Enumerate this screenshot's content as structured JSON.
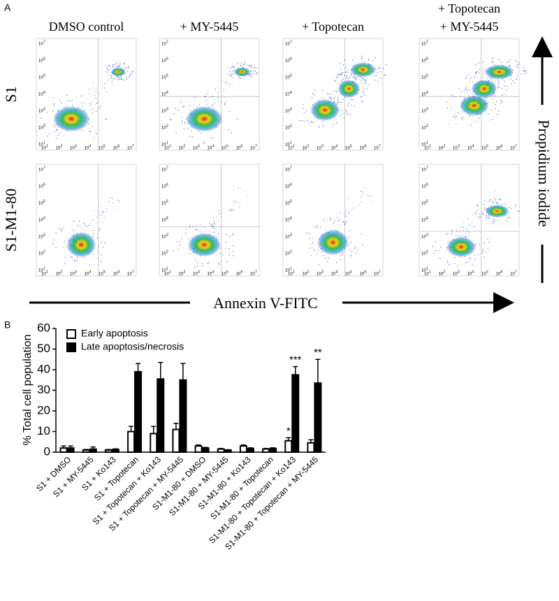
{
  "panel_a": {
    "label": "A",
    "columns": [
      [
        "DMSO control"
      ],
      [
        "+ MY-5445"
      ],
      [
        "+ Topotecan"
      ],
      [
        "+ Topotecan",
        "+ MY-5445"
      ]
    ],
    "rows": [
      "S1",
      "S1-M1-80"
    ],
    "y_label": "Propidium iodide",
    "x_label": "Annexin V-FITC",
    "axis_ticks": [
      {
        "base": "10",
        "exponent": "1"
      },
      {
        "base": "10",
        "exponent": "2"
      },
      {
        "base": "10",
        "exponent": "3"
      },
      {
        "base": "10",
        "exponent": "4"
      },
      {
        "base": "10",
        "exponent": "5"
      },
      {
        "base": "10",
        "exponent": "6"
      },
      {
        "base": "10",
        "exponent": "7"
      }
    ]
  },
  "chart_data": {
    "type": "bar",
    "panel_label": "B",
    "y_label": "% Total cell population",
    "categories": [
      "S1 + DMSO",
      "S1 + MY-5445",
      "S1 + Ko143",
      "S1 + Topotecan",
      "S1 + Topotecan + Ko143",
      "S1 + Topotecan + MY-5445",
      "S1-M1-80 + DMSO",
      "S1-M1-80 + MY-5445",
      "S1-M1-80 + Ko143",
      "S1-M1-80 + Topotecan",
      "S1-M1-80 + Topotecan + Ko143",
      "S1-M1-80 + Topotecan + MY-5445"
    ],
    "series": [
      {
        "name": "Early apoptosis",
        "color": "#ffffff",
        "values": [
          2,
          1,
          1,
          10,
          9,
          11,
          3,
          1.5,
          3,
          1.5,
          5.5,
          4.5
        ],
        "errors": [
          1,
          0.3,
          0.3,
          2.5,
          3.5,
          3,
          0.5,
          0.3,
          0.5,
          0.3,
          1.5,
          1.5
        ],
        "annotations": [
          null,
          null,
          null,
          null,
          null,
          null,
          null,
          null,
          null,
          null,
          "*",
          null
        ]
      },
      {
        "name": "Late apoptosis/necrosis",
        "color": "#000000",
        "values": [
          2,
          1.5,
          1.3,
          39,
          35.5,
          35,
          2,
          1,
          1.8,
          1.8,
          37.5,
          33.5
        ],
        "errors": [
          1,
          1,
          0.3,
          4,
          8,
          8,
          0.3,
          0.2,
          0.3,
          0.3,
          4,
          11.5
        ],
        "annotations": [
          null,
          null,
          null,
          null,
          null,
          null,
          null,
          null,
          null,
          null,
          "***",
          "**"
        ]
      }
    ],
    "ylim": [
      0,
      60
    ],
    "yticks": [
      0,
      10,
      20,
      30,
      40,
      50,
      60
    ],
    "legend": "upper-left"
  }
}
